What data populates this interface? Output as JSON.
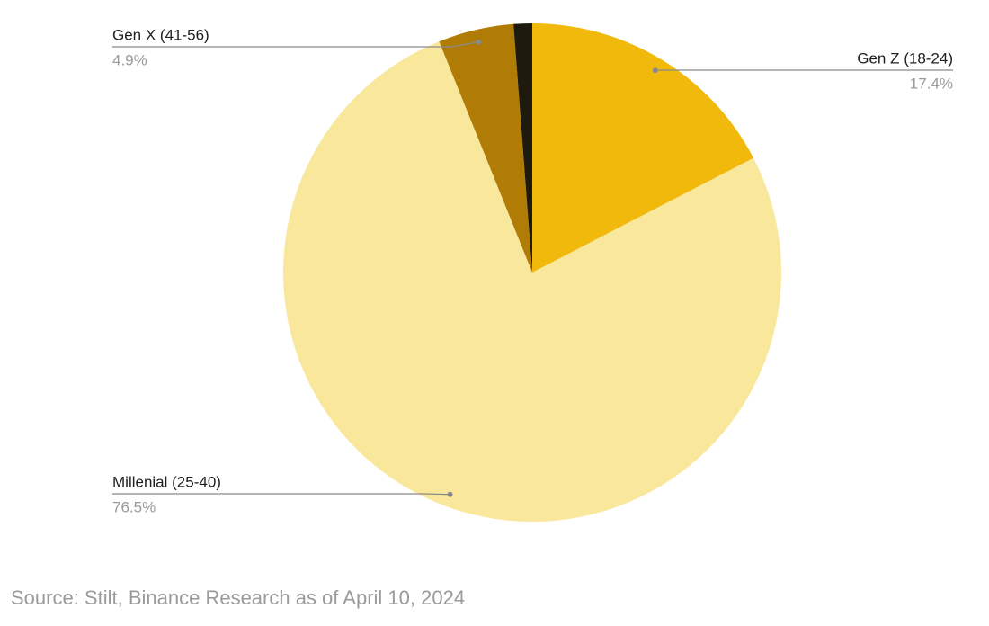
{
  "chart_data": {
    "type": "pie",
    "categories": [
      "Gen Z (18-24)",
      "Millenial (25-40)",
      "Gen X (41-56)",
      null
    ],
    "values": [
      17.4,
      76.5,
      4.9,
      1.2
    ],
    "value_labels": [
      "17.4%",
      "76.5%",
      "4.9%",
      null
    ],
    "colors": [
      "#f0b90b",
      "#f9e79c",
      "#b07c05",
      "#1e1a0e"
    ],
    "source": "Source: Stilt, Binance Research as of April 10, 2024"
  }
}
